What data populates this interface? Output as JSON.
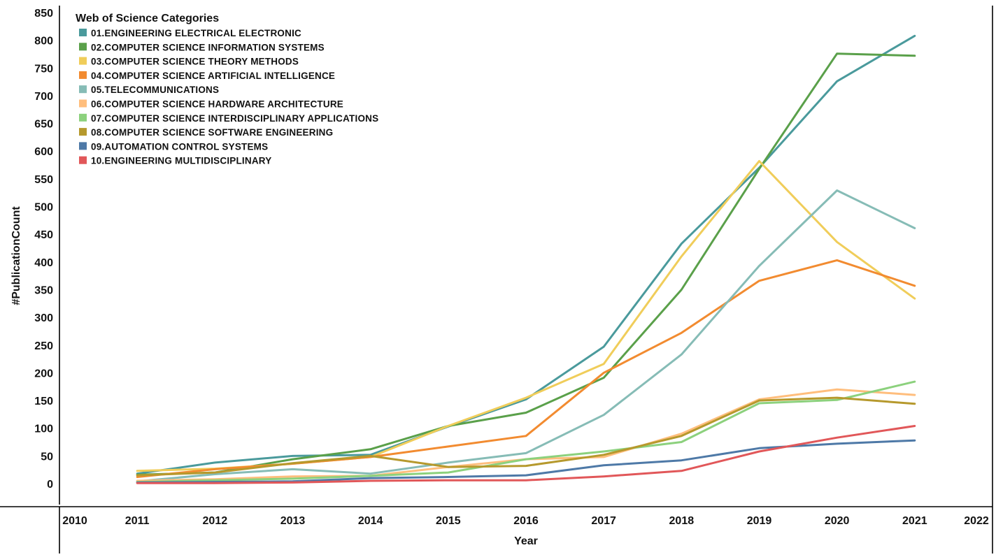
{
  "chart_data": {
    "type": "line",
    "xlabel": "Year",
    "ylabel": "#PublicationCount",
    "xlim": [
      2010,
      2022
    ],
    "ylim": [
      0,
      850
    ],
    "xticks": [
      "2010",
      "2011",
      "2012",
      "2013",
      "2014",
      "2015",
      "2016",
      "2017",
      "2018",
      "2019",
      "2020",
      "2021",
      "2022"
    ],
    "yticks": [
      "0",
      "50",
      "100",
      "150",
      "200",
      "250",
      "300",
      "350",
      "400",
      "450",
      "500",
      "550",
      "600",
      "650",
      "700",
      "750",
      "800",
      "850"
    ],
    "grid": false,
    "legend": {
      "title": "Web of Science Categories",
      "placement": "top-left"
    },
    "x": [
      2011,
      2012,
      2013,
      2014,
      2015,
      2016,
      2017,
      2018,
      2019,
      2020,
      2021
    ],
    "series": [
      {
        "name": "01.ENGINEERING ELECTRICAL ELECTRONIC",
        "color": "#4a9a9c",
        "values": [
          18,
          38,
          50,
          52,
          103,
          152,
          247,
          433,
          570,
          726,
          808
        ]
      },
      {
        "name": "02.COMPUTER SCIENCE INFORMATION SYSTEMS",
        "color": "#5aa04a",
        "values": [
          16,
          20,
          44,
          62,
          104,
          128,
          191,
          350,
          568,
          776,
          772
        ]
      },
      {
        "name": "03.COMPUTER SCIENCE THEORY METHODS",
        "color": "#f0cd5a",
        "values": [
          23,
          27,
          36,
          48,
          104,
          155,
          216,
          410,
          582,
          436,
          334
        ]
      },
      {
        "name": "04.COMPUTER SCIENCE ARTIFICIAL INTELLIGENCE",
        "color": "#f28b30",
        "values": [
          12,
          26,
          36,
          48,
          67,
          86,
          200,
          272,
          366,
          403,
          357
        ]
      },
      {
        "name": "05.TELECOMMUNICATIONS",
        "color": "#86bcb6",
        "values": [
          4,
          17,
          26,
          18,
          38,
          55,
          124,
          233,
          393,
          529,
          461
        ]
      },
      {
        "name": "06.COMPUTER SCIENCE HARDWARE ARCHITECTURE",
        "color": "#ffbe7d",
        "values": [
          5,
          8,
          13,
          14,
          30,
          44,
          48,
          90,
          152,
          170,
          160
        ]
      },
      {
        "name": "07.COMPUTER SCIENCE INTERDISCIPLINARY APPLICATIONS",
        "color": "#8cd17d",
        "values": [
          3,
          6,
          9,
          14,
          20,
          44,
          58,
          75,
          145,
          151,
          184
        ]
      },
      {
        "name": "08.COMPUTER SCIENCE SOFTWARE ENGINEERING",
        "color": "#b6992d",
        "values": [
          15,
          20,
          37,
          50,
          30,
          32,
          52,
          86,
          150,
          155,
          144
        ]
      },
      {
        "name": "09.AUTOMATION CONTROL SYSTEMS",
        "color": "#4e79a7",
        "values": [
          2,
          3,
          4,
          10,
          12,
          15,
          33,
          42,
          64,
          72,
          78
        ]
      },
      {
        "name": "10.ENGINEERING MULTIDISCIPLINARY",
        "color": "#e15759",
        "values": [
          1,
          1,
          2,
          5,
          6,
          6,
          13,
          23,
          58,
          83,
          104
        ]
      }
    ]
  }
}
